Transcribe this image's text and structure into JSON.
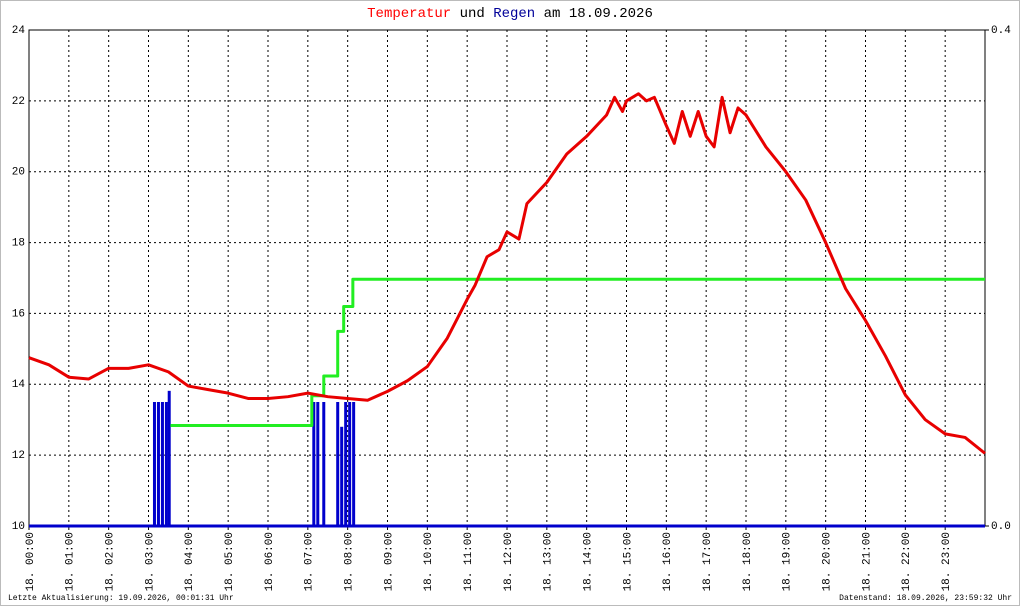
{
  "chart_data": {
    "type": "line",
    "title_parts": [
      {
        "text": "Temperatur",
        "color": "#ff0000"
      },
      {
        "text": "und",
        "color": "#000000"
      },
      {
        "text": "Regen",
        "color": "#000099"
      },
      {
        "text": "am 18.09.2026",
        "color": "#000000"
      }
    ],
    "footer_left": "Letzte Aktualisierung: 19.09.2026, 00:01:31 Uhr",
    "footer_right": "Datenstand: 18.09.2026, 23:59:32 Uhr",
    "xlim": [
      0,
      24
    ],
    "xticks": [
      {
        "value": 0,
        "label": "18. 00:00"
      },
      {
        "value": 1,
        "label": "18. 01:00"
      },
      {
        "value": 2,
        "label": "18. 02:00"
      },
      {
        "value": 3,
        "label": "18. 03:00"
      },
      {
        "value": 4,
        "label": "18. 04:00"
      },
      {
        "value": 5,
        "label": "18. 05:00"
      },
      {
        "value": 6,
        "label": "18. 06:00"
      },
      {
        "value": 7,
        "label": "18. 07:00"
      },
      {
        "value": 8,
        "label": "18. 08:00"
      },
      {
        "value": 9,
        "label": "18. 09:00"
      },
      {
        "value": 10,
        "label": "18. 10:00"
      },
      {
        "value": 11,
        "label": "18. 11:00"
      },
      {
        "value": 12,
        "label": "18. 12:00"
      },
      {
        "value": 13,
        "label": "18. 13:00"
      },
      {
        "value": 14,
        "label": "18. 14:00"
      },
      {
        "value": 15,
        "label": "18. 15:00"
      },
      {
        "value": 16,
        "label": "18. 16:00"
      },
      {
        "value": 17,
        "label": "18. 17:00"
      },
      {
        "value": 18,
        "label": "18. 18:00"
      },
      {
        "value": 19,
        "label": "18. 19:00"
      },
      {
        "value": 20,
        "label": "18. 20:00"
      },
      {
        "value": 21,
        "label": "18. 21:00"
      },
      {
        "value": 22,
        "label": "18. 22:00"
      },
      {
        "value": 23,
        "label": "18. 23:00"
      }
    ],
    "ylim": [
      10,
      24
    ],
    "yticks": [
      10,
      12,
      14,
      16,
      18,
      20,
      22,
      24
    ],
    "y2lim": [
      0,
      0.4
    ],
    "y2ticks": [
      {
        "value": 0,
        "label": "0.0"
      },
      0.4
    ],
    "grid": true,
    "series": [
      {
        "type": "bar",
        "axis": "y2",
        "color": "#0000cc",
        "x": [
          3.15,
          3.25,
          3.35,
          3.45,
          3.52,
          7.15,
          7.25,
          7.4,
          7.75,
          7.85,
          7.95,
          8.05,
          8.15
        ],
        "values": [
          0.1,
          0.1,
          0.1,
          0.1,
          0.109,
          0.1,
          0.1,
          0.1,
          0.1,
          0.08,
          0.1,
          0.1,
          0.1
        ]
      },
      {
        "type": "line",
        "axis": "y2",
        "color": "#22ee22",
        "x": [
          3.55,
          7.1,
          7.1,
          7.4,
          7.4,
          7.75,
          7.75,
          7.9,
          7.9,
          8.13,
          8.13,
          24
        ],
        "values": [
          0.081,
          0.081,
          0.105,
          0.105,
          0.121,
          0.121,
          0.157,
          0.157,
          0.177,
          0.177,
          0.199,
          0.199
        ]
      },
      {
        "type": "line",
        "axis": "y",
        "color": "#e80000",
        "x": [
          0,
          0.5,
          1,
          1.5,
          2,
          2.5,
          3,
          3.5,
          4,
          4.5,
          5,
          5.5,
          6,
          6.5,
          7,
          7.5,
          8,
          8.5,
          9,
          9.5,
          10,
          10.5,
          11,
          11.2,
          11.5,
          11.8,
          12,
          12.3,
          12.5,
          13,
          13.5,
          14,
          14.5,
          14.7,
          14.9,
          15,
          15.3,
          15.5,
          15.7,
          16,
          16.2,
          16.4,
          16.6,
          16.8,
          17,
          17.2,
          17.4,
          17.6,
          17.8,
          18,
          18.5,
          19,
          19.5,
          20,
          20.5,
          21,
          21.5,
          22,
          22.5,
          23,
          23.5,
          24
        ],
        "values": [
          14.75,
          14.55,
          14.2,
          14.15,
          14.45,
          14.45,
          14.55,
          14.35,
          13.95,
          13.85,
          13.75,
          13.6,
          13.6,
          13.65,
          13.75,
          13.65,
          13.6,
          13.55,
          13.8,
          14.1,
          14.5,
          15.3,
          16.4,
          16.8,
          17.6,
          17.8,
          18.3,
          18.1,
          19.1,
          19.7,
          20.5,
          21.0,
          21.6,
          22.1,
          21.7,
          22.0,
          22.2,
          22.0,
          22.1,
          21.3,
          20.8,
          21.7,
          21.0,
          21.7,
          21.0,
          20.7,
          22.1,
          21.1,
          21.8,
          21.6,
          20.7,
          20.0,
          19.2,
          18.0,
          16.7,
          15.8,
          14.8,
          13.7,
          13.0,
          12.6,
          12.5,
          12.05
        ]
      }
    ]
  }
}
